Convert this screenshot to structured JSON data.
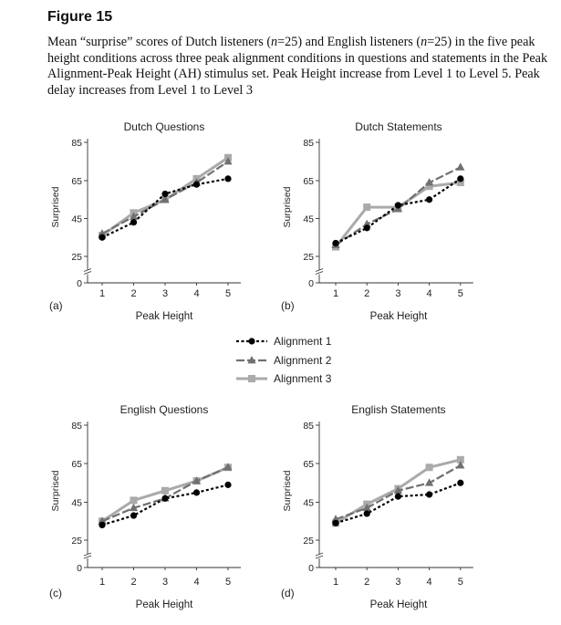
{
  "figure_label": "Figure 15",
  "caption_parts": [
    {
      "text": "Mean “surprise” scores of Dutch listeners (",
      "italic": false
    },
    {
      "text": "n",
      "italic": true
    },
    {
      "text": "=25) and English listeners (",
      "italic": false
    },
    {
      "text": "n",
      "italic": true
    },
    {
      "text": "=25) in the five peak height conditions across three peak alignment conditions in questions and statements in the Peak Alignment-Peak Height (AH) stimulus set. Peak Height increase from Level 1 to Level 5. Peak delay increases from Level 1 to Level 3",
      "italic": false
    }
  ],
  "legend": {
    "placement": "center",
    "entries": [
      "Alignment 1",
      "Alignment 2",
      "Alignment 3"
    ]
  },
  "series_styles": [
    {
      "color": "#000000",
      "marker": "circle",
      "dash": "3,2.5"
    },
    {
      "color": "#707070",
      "marker": "triangle",
      "dash": "9,3"
    },
    {
      "color": "#aaaaaa",
      "marker": "square",
      "dash": ""
    }
  ],
  "chart_data": [
    {
      "type": "line",
      "panel_label": "(a)",
      "title": "Dutch Questions",
      "xlabel": "Peak Height",
      "ylabel": "Surprised",
      "x": [
        1,
        2,
        3,
        4,
        5
      ],
      "xticks": [
        "1",
        "2",
        "3",
        "4",
        "5"
      ],
      "yticks": [
        "0",
        "25",
        "45",
        "65",
        "85"
      ],
      "ylim": [
        0,
        85
      ],
      "axis_break": true,
      "series": [
        {
          "name": "Alignment 1",
          "values": [
            35,
            43,
            58,
            63,
            66
          ]
        },
        {
          "name": "Alignment 2",
          "values": [
            37,
            46,
            55,
            64,
            75
          ]
        },
        {
          "name": "Alignment 3",
          "values": [
            36,
            48,
            55,
            66,
            77
          ]
        }
      ]
    },
    {
      "type": "line",
      "panel_label": "(b)",
      "title": "Dutch Statements",
      "xlabel": "Peak Height",
      "ylabel": "Surprised",
      "x": [
        1,
        2,
        3,
        4,
        5
      ],
      "xticks": [
        "1",
        "2",
        "3",
        "4",
        "5"
      ],
      "yticks": [
        "0",
        "25",
        "45",
        "65",
        "85"
      ],
      "ylim": [
        0,
        85
      ],
      "axis_break": true,
      "series": [
        {
          "name": "Alignment 1",
          "values": [
            32,
            40,
            52,
            55,
            66
          ]
        },
        {
          "name": "Alignment 2",
          "values": [
            31,
            42,
            50,
            64,
            72
          ]
        },
        {
          "name": "Alignment 3",
          "values": [
            30,
            51,
            51,
            62,
            64
          ]
        }
      ]
    },
    {
      "type": "line",
      "panel_label": "(c)",
      "title": "English Questions",
      "xlabel": "Peak Height",
      "ylabel": "Surprised",
      "x": [
        1,
        2,
        3,
        4,
        5
      ],
      "xticks": [
        "1",
        "2",
        "3",
        "4",
        "5"
      ],
      "yticks": [
        "0",
        "25",
        "45",
        "65",
        "85"
      ],
      "ylim": [
        0,
        85
      ],
      "axis_break": true,
      "series": [
        {
          "name": "Alignment 1",
          "values": [
            33,
            38,
            47,
            50,
            54
          ]
        },
        {
          "name": "Alignment 2",
          "values": [
            35,
            42,
            47,
            56,
            63
          ]
        },
        {
          "name": "Alignment 3",
          "values": [
            35,
            46,
            51,
            56,
            63
          ]
        }
      ]
    },
    {
      "type": "line",
      "panel_label": "(d)",
      "title": "English Statements",
      "xlabel": "Peak Height",
      "ylabel": "Surprised",
      "x": [
        1,
        2,
        3,
        4,
        5
      ],
      "xticks": [
        "1",
        "2",
        "3",
        "4",
        "5"
      ],
      "yticks": [
        "0",
        "25",
        "45",
        "65",
        "85"
      ],
      "ylim": [
        0,
        85
      ],
      "axis_break": true,
      "series": [
        {
          "name": "Alignment 1",
          "values": [
            34,
            39,
            48,
            49,
            55
          ]
        },
        {
          "name": "Alignment 2",
          "values": [
            36,
            42,
            51,
            55,
            64
          ]
        },
        {
          "name": "Alignment 3",
          "values": [
            34,
            44,
            52,
            63,
            67
          ]
        }
      ]
    }
  ]
}
